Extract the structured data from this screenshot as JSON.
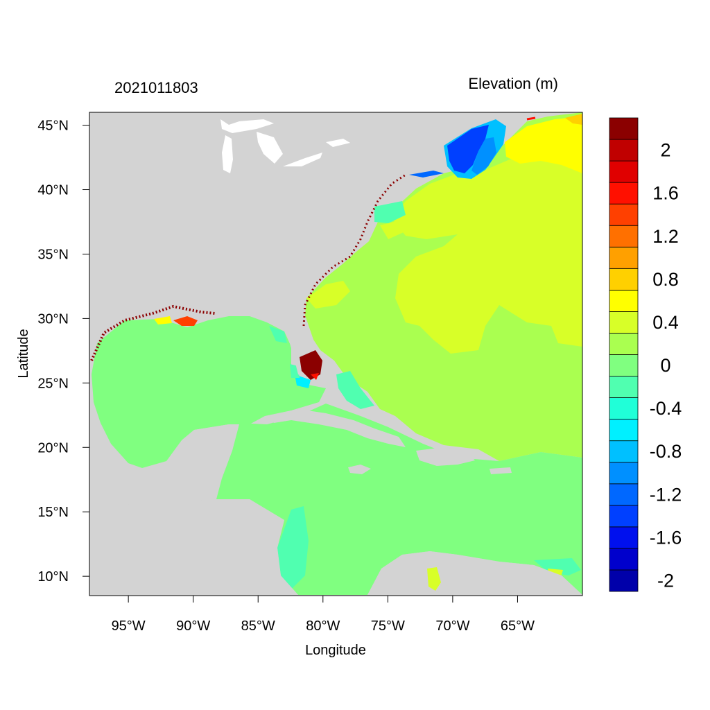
{
  "header": {
    "timestamp": "2021011803",
    "variable_label": "Elevation (m)"
  },
  "axes": {
    "xlabel": "Longitude",
    "ylabel": "Latitude",
    "x_ticks": [
      {
        "value": -95,
        "label": "95°W"
      },
      {
        "value": -90,
        "label": "90°W"
      },
      {
        "value": -85,
        "label": "85°W"
      },
      {
        "value": -80,
        "label": "80°W"
      },
      {
        "value": -75,
        "label": "75°W"
      },
      {
        "value": -70,
        "label": "70°W"
      },
      {
        "value": -65,
        "label": "65°W"
      }
    ],
    "y_ticks": [
      {
        "value": 45,
        "label": "45°N"
      },
      {
        "value": 40,
        "label": "40°N"
      },
      {
        "value": 35,
        "label": "35°N"
      },
      {
        "value": 30,
        "label": "30°N"
      },
      {
        "value": 25,
        "label": "25°N"
      },
      {
        "value": 20,
        "label": "20°N"
      },
      {
        "value": 15,
        "label": "15°N"
      },
      {
        "value": 10,
        "label": "10°N"
      }
    ],
    "lon_range": [
      -98.0,
      -60.0
    ],
    "lat_range": [
      8.5,
      46.0
    ]
  },
  "colorbar": {
    "bin_colors": [
      "#0000aa",
      "#0000cc",
      "#0010ee",
      "#0040ff",
      "#0068ff",
      "#0090ff",
      "#00c0ff",
      "#00f0ff",
      "#20ffd8",
      "#50ffb0",
      "#80ff80",
      "#aaff50",
      "#d8ff28",
      "#ffff00",
      "#ffd000",
      "#ffa000",
      "#ff7000",
      "#ff4000",
      "#ff1000",
      "#e00000",
      "#c00000",
      "#8b0000"
    ],
    "labels": [
      {
        "text": "2",
        "bin_edge": 20
      },
      {
        "text": "1.6",
        "bin_edge": 18
      },
      {
        "text": "1.2",
        "bin_edge": 16
      },
      {
        "text": "0.8",
        "bin_edge": 14
      },
      {
        "text": "0.4",
        "bin_edge": 12
      },
      {
        "text": "0",
        "bin_edge": 10
      },
      {
        "text": "-0.4",
        "bin_edge": 8
      },
      {
        "text": "-0.8",
        "bin_edge": 6
      },
      {
        "text": "-1.2",
        "bin_edge": 4
      },
      {
        "text": "-1.6",
        "bin_edge": 2
      },
      {
        "text": "-2",
        "bin_edge": 0
      }
    ]
  },
  "map_colors": {
    "land": "#d3d3d3",
    "lakes": "#ffffff",
    "gulf_caribbean": "#80ff80",
    "atlantic": "#aaff50",
    "open_atlantic_high": "#d8ff28",
    "north_atlantic_yellow": "#ffff00",
    "gulf_of_maine": "#0040ff",
    "surge_max": "#8b0000",
    "surge_high": "#ff4000",
    "negative_mild": "#50ffb0",
    "negative_cyan": "#20ffd8"
  }
}
